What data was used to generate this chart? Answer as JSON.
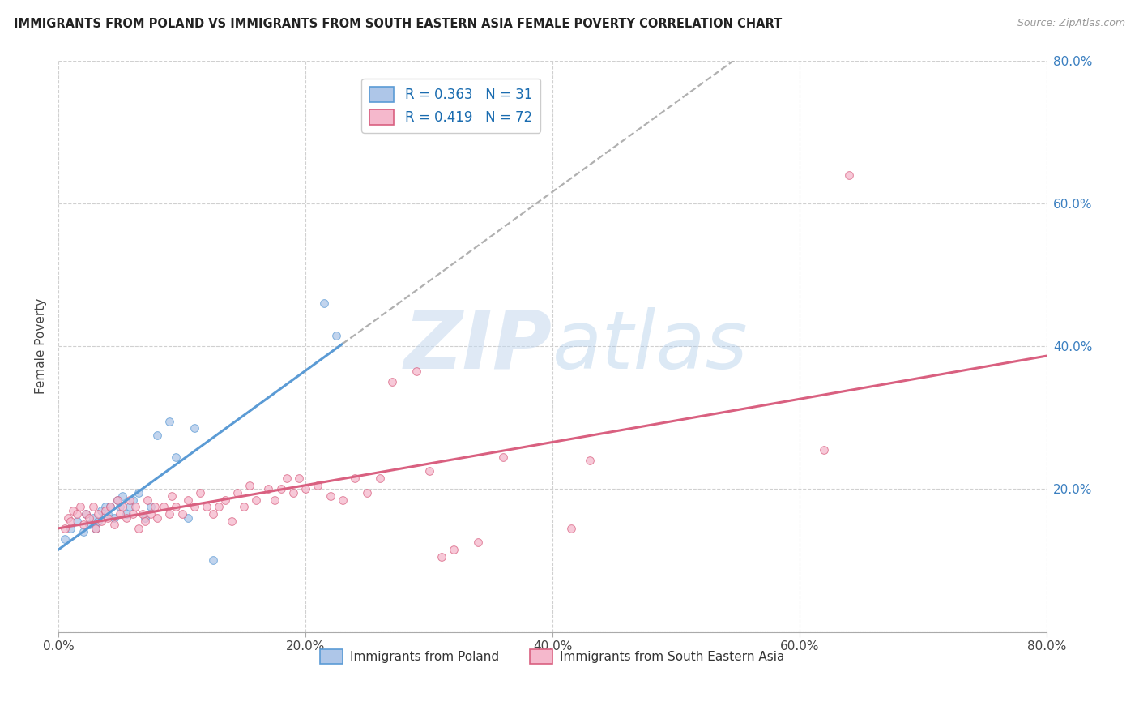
{
  "title": "IMMIGRANTS FROM POLAND VS IMMIGRANTS FROM SOUTH EASTERN ASIA FEMALE POVERTY CORRELATION CHART",
  "source": "Source: ZipAtlas.com",
  "ylabel": "Female Poverty",
  "xlim": [
    0.0,
    0.8
  ],
  "ylim": [
    0.0,
    0.8
  ],
  "xtick_labels": [
    "0.0%",
    "20.0%",
    "40.0%",
    "60.0%",
    "80.0%"
  ],
  "xtick_vals": [
    0.0,
    0.2,
    0.4,
    0.6,
    0.8
  ],
  "ytick_right_labels": [
    "20.0%",
    "40.0%",
    "60.0%",
    "80.0%"
  ],
  "ytick_right_vals": [
    0.2,
    0.4,
    0.6,
    0.8
  ],
  "background_color": "#ffffff",
  "plot_bg_color": "#ffffff",
  "grid_color": "#d0d0d0",
  "series1_color": "#aec6e8",
  "series2_color": "#f5b8cc",
  "trendline1_color": "#5b9bd5",
  "trendline2_color": "#d96080",
  "trendline_dashed_color": "#b0b0b0",
  "legend1_label": "R = 0.363   N = 31",
  "legend2_label": "R = 0.419   N = 72",
  "legend_color": "#1a6cb0",
  "series1_label": "Immigrants from Poland",
  "series2_label": "Immigrants from South Eastern Asia",
  "poland_x": [
    0.005,
    0.01,
    0.015,
    0.02,
    0.022,
    0.025,
    0.028,
    0.03,
    0.032,
    0.035,
    0.038,
    0.04,
    0.042,
    0.045,
    0.048,
    0.05,
    0.052,
    0.055,
    0.058,
    0.06,
    0.065,
    0.07,
    0.075,
    0.08,
    0.09,
    0.095,
    0.105,
    0.11,
    0.125,
    0.215,
    0.225
  ],
  "poland_y": [
    0.13,
    0.145,
    0.155,
    0.14,
    0.165,
    0.15,
    0.16,
    0.145,
    0.155,
    0.17,
    0.175,
    0.165,
    0.175,
    0.16,
    0.185,
    0.175,
    0.19,
    0.165,
    0.175,
    0.185,
    0.195,
    0.16,
    0.175,
    0.275,
    0.295,
    0.245,
    0.16,
    0.285,
    0.1,
    0.46,
    0.415
  ],
  "sea_x": [
    0.005,
    0.008,
    0.01,
    0.012,
    0.015,
    0.018,
    0.02,
    0.022,
    0.025,
    0.028,
    0.03,
    0.032,
    0.035,
    0.038,
    0.04,
    0.042,
    0.045,
    0.048,
    0.05,
    0.052,
    0.055,
    0.058,
    0.06,
    0.062,
    0.065,
    0.068,
    0.07,
    0.072,
    0.075,
    0.078,
    0.08,
    0.085,
    0.09,
    0.092,
    0.095,
    0.1,
    0.105,
    0.11,
    0.115,
    0.12,
    0.125,
    0.13,
    0.135,
    0.14,
    0.145,
    0.15,
    0.155,
    0.16,
    0.17,
    0.175,
    0.18,
    0.185,
    0.19,
    0.195,
    0.2,
    0.21,
    0.22,
    0.23,
    0.24,
    0.25,
    0.26,
    0.27,
    0.29,
    0.3,
    0.31,
    0.32,
    0.34,
    0.36,
    0.415,
    0.43,
    0.62,
    0.64
  ],
  "sea_y": [
    0.145,
    0.16,
    0.155,
    0.17,
    0.165,
    0.175,
    0.15,
    0.165,
    0.16,
    0.175,
    0.145,
    0.165,
    0.155,
    0.17,
    0.16,
    0.175,
    0.15,
    0.185,
    0.165,
    0.175,
    0.16,
    0.185,
    0.165,
    0.175,
    0.145,
    0.165,
    0.155,
    0.185,
    0.165,
    0.175,
    0.16,
    0.175,
    0.165,
    0.19,
    0.175,
    0.165,
    0.185,
    0.175,
    0.195,
    0.175,
    0.165,
    0.175,
    0.185,
    0.155,
    0.195,
    0.175,
    0.205,
    0.185,
    0.2,
    0.185,
    0.2,
    0.215,
    0.195,
    0.215,
    0.2,
    0.205,
    0.19,
    0.185,
    0.215,
    0.195,
    0.215,
    0.35,
    0.365,
    0.225,
    0.105,
    0.115,
    0.125,
    0.245,
    0.145,
    0.24,
    0.255,
    0.64
  ],
  "marker_size": 7,
  "marker_alpha": 0.75,
  "watermark_zip": "ZIP",
  "watermark_atlas": "atlas",
  "watermark_color_zip": "#c5d8ee",
  "watermark_color_atlas": "#a8c8e8",
  "watermark_fontsize": 72
}
